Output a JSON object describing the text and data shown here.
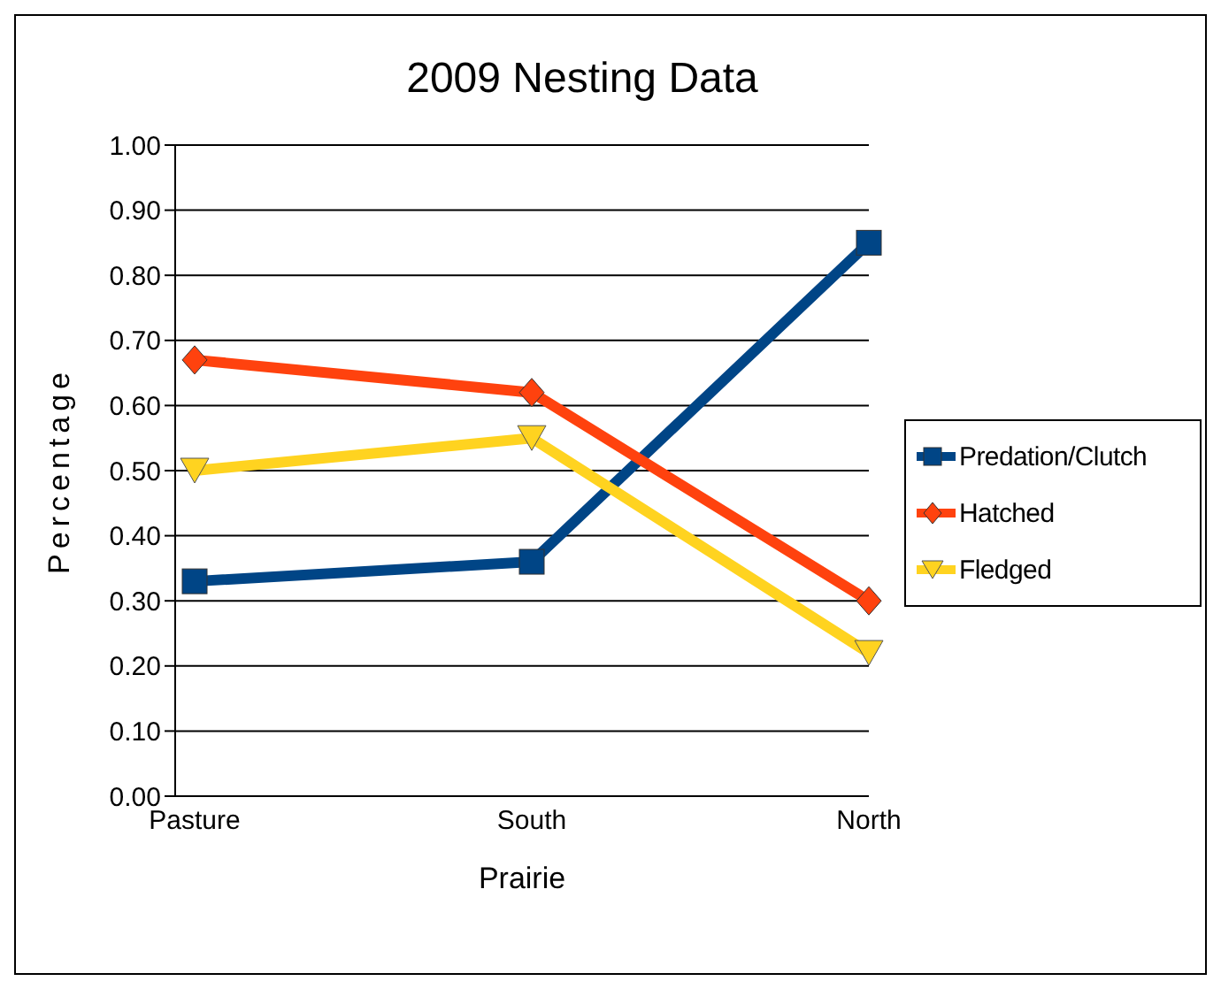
{
  "chart_data": {
    "type": "line",
    "title": "2009 Nesting Data",
    "xlabel": "Prairie",
    "ylabel": "Percentage",
    "categories": [
      "Pasture",
      "South",
      "North"
    ],
    "series": [
      {
        "name": "Predation/Clutch",
        "color": "#004586",
        "marker": "square",
        "values": [
          0.33,
          0.36,
          0.85
        ]
      },
      {
        "name": "Hatched",
        "color": "#ff420e",
        "marker": "diamond",
        "values": [
          0.67,
          0.62,
          0.3
        ]
      },
      {
        "name": "Fledged",
        "color": "#ffd320",
        "marker": "triangle-down",
        "values": [
          0.5,
          0.55,
          0.22
        ]
      }
    ],
    "ylim": [
      0,
      1
    ],
    "yticks": [
      {
        "value": 0,
        "label": "0.00"
      },
      {
        "value": 0.1,
        "label": "0.10"
      },
      {
        "value": 0.2,
        "label": "0.20"
      },
      {
        "value": 0.3,
        "label": "0.30"
      },
      {
        "value": 0.4,
        "label": "0.40"
      },
      {
        "value": 0.5,
        "label": "0.50"
      },
      {
        "value": 0.6,
        "label": "0.60"
      },
      {
        "value": 0.7,
        "label": "0.70"
      },
      {
        "value": 0.8,
        "label": "0.80"
      },
      {
        "value": 0.9,
        "label": "0.90"
      },
      {
        "value": 1,
        "label": "1.00"
      }
    ],
    "grid": "y",
    "legend": "right",
    "line_style": "solid"
  }
}
